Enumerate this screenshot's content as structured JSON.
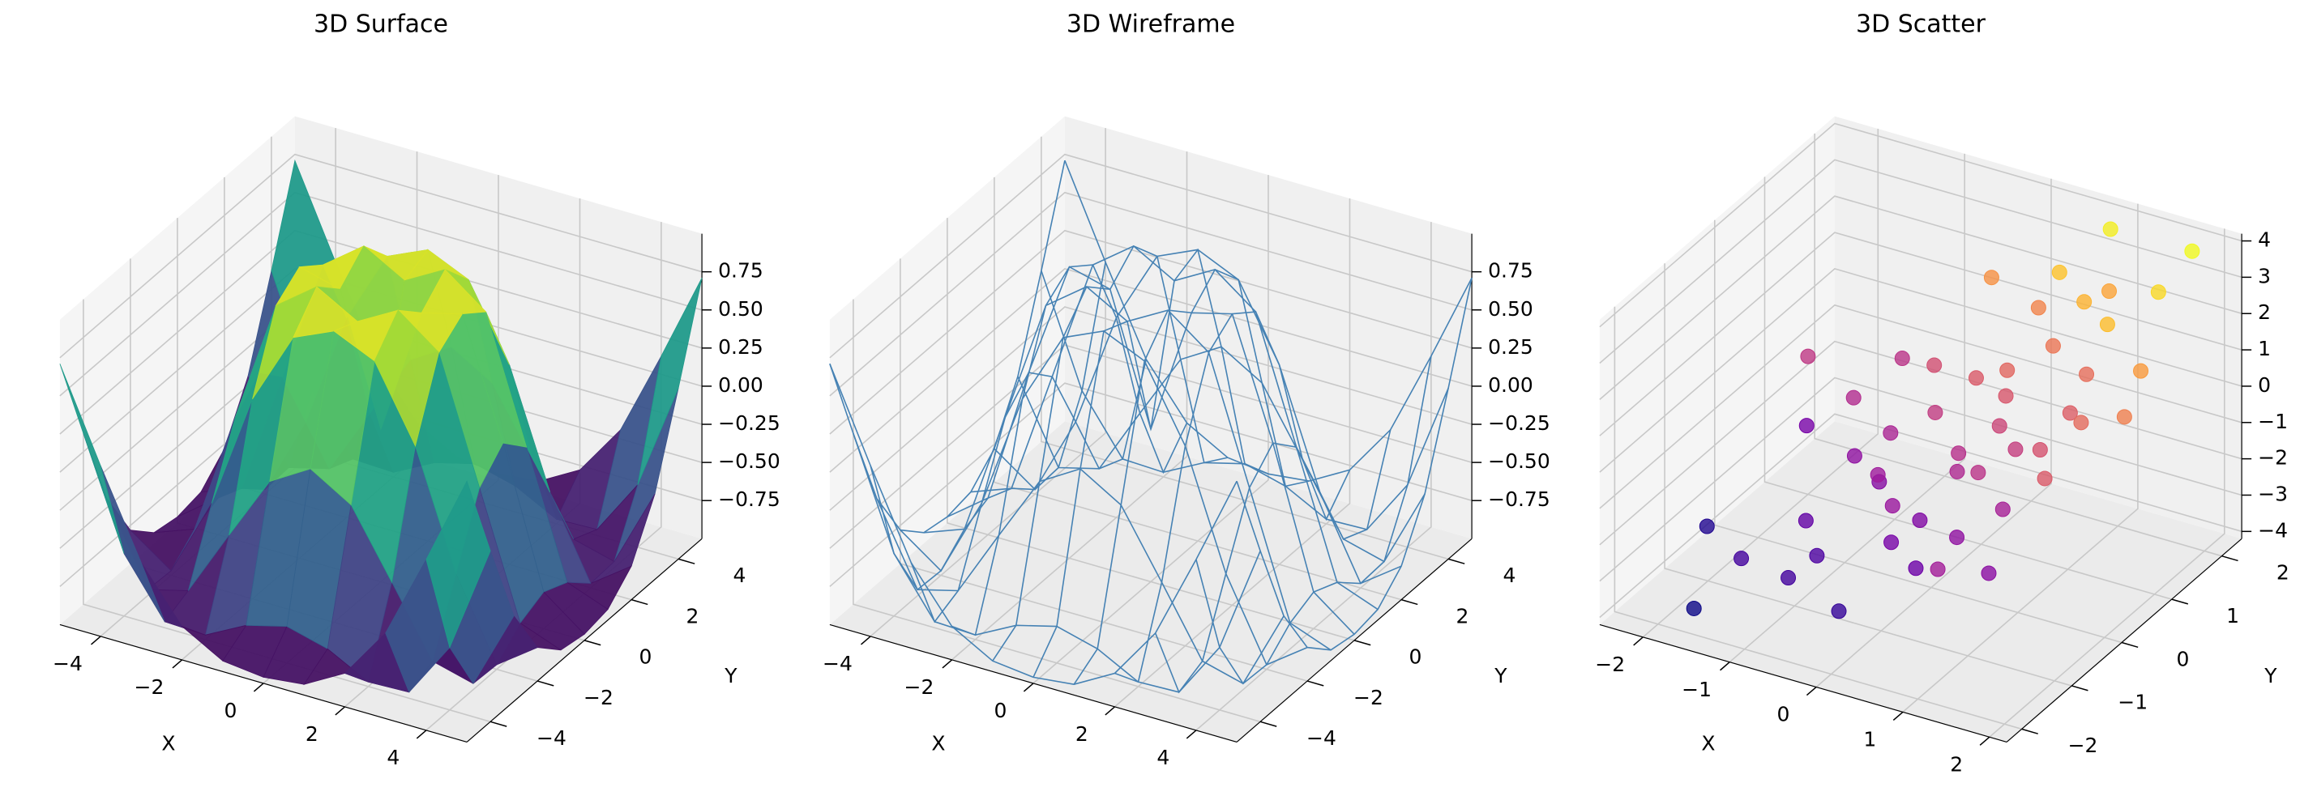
{
  "chart_data": [
    {
      "type": "surface",
      "title": "3D Surface",
      "xlabel": "X",
      "ylabel": "Y",
      "colormap": "viridis",
      "x": [
        -5,
        -4,
        -3,
        -2,
        -1,
        0,
        1,
        2,
        3,
        4,
        5
      ],
      "y": [
        -5,
        -4,
        -3,
        -2,
        -1,
        0,
        1,
        2,
        3,
        4,
        5
      ],
      "z": [
        [
          0.71,
          0.12,
          -0.44,
          -0.78,
          -0.93,
          -0.96,
          -0.93,
          -0.78,
          -0.44,
          0.12,
          0.71
        ],
        [
          0.12,
          -0.59,
          -0.96,
          -0.97,
          -0.83,
          -0.76,
          -0.83,
          -0.97,
          -0.96,
          -0.59,
          0.12
        ],
        [
          -0.44,
          -0.96,
          -0.89,
          -0.45,
          -0.02,
          0.14,
          -0.02,
          -0.45,
          -0.89,
          -0.96,
          -0.44
        ],
        [
          -0.78,
          -0.97,
          -0.45,
          0.31,
          0.79,
          0.91,
          0.79,
          0.31,
          -0.45,
          -0.97,
          -0.78
        ],
        [
          -0.93,
          -0.83,
          -0.02,
          0.79,
          0.99,
          0.84,
          0.99,
          0.79,
          -0.02,
          -0.83,
          -0.93
        ],
        [
          -0.96,
          -0.76,
          0.14,
          0.91,
          0.84,
          0,
          0.84,
          0.91,
          0.14,
          -0.76,
          -0.96
        ],
        [
          -0.93,
          -0.83,
          -0.02,
          0.79,
          0.99,
          0.84,
          0.99,
          0.79,
          -0.02,
          -0.83,
          -0.93
        ],
        [
          -0.78,
          -0.97,
          -0.45,
          0.31,
          0.79,
          0.91,
          0.79,
          0.31,
          -0.45,
          -0.97,
          -0.78
        ],
        [
          -0.44,
          -0.96,
          -0.89,
          -0.45,
          -0.02,
          0.14,
          -0.02,
          -0.45,
          -0.89,
          -0.96,
          -0.44
        ],
        [
          0.12,
          -0.59,
          -0.96,
          -0.97,
          -0.83,
          -0.76,
          -0.83,
          -0.97,
          -0.96,
          -0.59,
          0.12
        ],
        [
          0.71,
          0.12,
          -0.44,
          -0.78,
          -0.93,
          -0.96,
          -0.93,
          -0.78,
          -0.44,
          0.12,
          0.71
        ]
      ],
      "xlim": [
        -5,
        5
      ],
      "ylim": [
        -5,
        5
      ],
      "zlim": [
        -1,
        1
      ],
      "xticks": [
        {
          "value": -4,
          "label": "−4"
        },
        {
          "value": -2,
          "label": "−2"
        },
        0,
        2,
        4
      ],
      "yticks": [
        {
          "value": -4,
          "label": "−4"
        },
        {
          "value": -2,
          "label": "−2"
        },
        0,
        2,
        4
      ],
      "zticks": [
        {
          "value": -0.75,
          "label": "−0.75"
        },
        {
          "value": -0.5,
          "label": "−0.50"
        },
        {
          "value": -0.25,
          "label": "−0.25"
        },
        {
          "value": 0,
          "label": "0.00"
        },
        0.25,
        {
          "value": 0.5,
          "label": "0.50"
        },
        0.75
      ]
    },
    {
      "type": "wireframe",
      "title": "3D Wireframe",
      "xlabel": "X",
      "ylabel": "Y",
      "color": "#4682b4",
      "x": [
        -5,
        -4,
        -3,
        -2,
        -1,
        0,
        1,
        2,
        3,
        4,
        5
      ],
      "y": [
        -5,
        -4,
        -3,
        -2,
        -1,
        0,
        1,
        2,
        3,
        4,
        5
      ],
      "z": [
        [
          0.71,
          0.12,
          -0.44,
          -0.78,
          -0.93,
          -0.96,
          -0.93,
          -0.78,
          -0.44,
          0.12,
          0.71
        ],
        [
          0.12,
          -0.59,
          -0.96,
          -0.97,
          -0.83,
          -0.76,
          -0.83,
          -0.97,
          -0.96,
          -0.59,
          0.12
        ],
        [
          -0.44,
          -0.96,
          -0.89,
          -0.45,
          -0.02,
          0.14,
          -0.02,
          -0.45,
          -0.89,
          -0.96,
          -0.44
        ],
        [
          -0.78,
          -0.97,
          -0.45,
          0.31,
          0.79,
          0.91,
          0.79,
          0.31,
          -0.45,
          -0.97,
          -0.78
        ],
        [
          -0.93,
          -0.83,
          -0.02,
          0.79,
          0.99,
          0.84,
          0.99,
          0.79,
          -0.02,
          -0.83,
          -0.93
        ],
        [
          -0.96,
          -0.76,
          0.14,
          0.91,
          0.84,
          0,
          0.84,
          0.91,
          0.14,
          -0.76,
          -0.96
        ],
        [
          -0.93,
          -0.83,
          -0.02,
          0.79,
          0.99,
          0.84,
          0.99,
          0.79,
          -0.02,
          -0.83,
          -0.93
        ],
        [
          -0.78,
          -0.97,
          -0.45,
          0.31,
          0.79,
          0.91,
          0.79,
          0.31,
          -0.45,
          -0.97,
          -0.78
        ],
        [
          -0.44,
          -0.96,
          -0.89,
          -0.45,
          -0.02,
          0.14,
          -0.02,
          -0.45,
          -0.89,
          -0.96,
          -0.44
        ],
        [
          0.12,
          -0.59,
          -0.96,
          -0.97,
          -0.83,
          -0.76,
          -0.83,
          -0.97,
          -0.96,
          -0.59,
          0.12
        ],
        [
          0.71,
          0.12,
          -0.44,
          -0.78,
          -0.93,
          -0.96,
          -0.93,
          -0.78,
          -0.44,
          0.12,
          0.71
        ]
      ],
      "xlim": [
        -5,
        5
      ],
      "ylim": [
        -5,
        5
      ],
      "zlim": [
        -1,
        1
      ],
      "xticks": [
        {
          "value": -4,
          "label": "−4"
        },
        {
          "value": -2,
          "label": "−2"
        },
        0,
        2,
        4
      ],
      "yticks": [
        {
          "value": -4,
          "label": "−4"
        },
        {
          "value": -2,
          "label": "−2"
        },
        0,
        2,
        4
      ],
      "zticks": [
        {
          "value": -0.75,
          "label": "−0.75"
        },
        {
          "value": -0.5,
          "label": "−0.50"
        },
        {
          "value": -0.25,
          "label": "−0.25"
        },
        {
          "value": 0,
          "label": "0.00"
        },
        0.25,
        {
          "value": 0.5,
          "label": "0.50"
        },
        0.75
      ]
    },
    {
      "type": "scatter",
      "title": "3D Scatter",
      "xlabel": "X",
      "ylabel": "Y",
      "colormap": "plasma",
      "x": [
        -2.3,
        -1.9,
        -1.5,
        -1.2,
        -1.0,
        -0.8,
        -0.6,
        -0.5,
        -0.3,
        -0.2,
        0.0,
        0.1,
        0.2,
        0.3,
        0.4,
        0.5,
        0.6,
        0.7,
        0.8,
        0.9,
        1.0,
        1.1,
        1.2,
        1.3,
        1.5,
        1.7,
        1.9,
        -1.7,
        -1.1,
        -0.7,
        -0.4,
        0.0,
        0.3,
        0.6,
        0.9,
        1.2,
        1.6,
        -2.0,
        -0.9,
        0.2,
        0.8,
        1.4,
        -1.3,
        -0.1,
        0.5,
        1.0,
        -0.6,
        0.4,
        1.8,
        2.0
      ],
      "y": [
        -0.5,
        0.8,
        -1.2,
        1.5,
        0.2,
        -0.9,
        1.1,
        -0.2,
        0.6,
        -1.5,
        0.9,
        -0.4,
        1.8,
        0.0,
        -1.0,
        0.5,
        1.4,
        -0.7,
        0.3,
        2.0,
        -0.3,
        1.2,
        0.7,
        -1.1,
        0.4,
        1.6,
        0.9,
        -1.8,
        -0.6,
        0.4,
        1.9,
        -0.8,
        1.0,
        -0.1,
        1.5,
        0.1,
        -0.5,
        1.0,
        -1.3,
        0.2,
        2.2,
        1.1,
        0.7,
        -0.6,
        1.7,
        -1.6,
        0.0,
        0.8,
        2.1,
        0.4
      ],
      "z": [
        -3.5,
        -2.0,
        -3.0,
        -0.5,
        -1.5,
        -2.8,
        0.2,
        -1.2,
        -0.3,
        -3.2,
        0.5,
        -1.8,
        1.5,
        -0.8,
        -2.2,
        0.0,
        1.2,
        -1.5,
        -0.2,
        2.2,
        -1.0,
        1.0,
        0.6,
        -1.6,
        0.9,
        3.2,
        2.0,
        -3.8,
        -2.4,
        -0.9,
        1.8,
        -2.0,
        0.8,
        -0.5,
        2.5,
        0.3,
        0.5,
        -0.4,
        -3.0,
        -0.6,
        3.6,
        2.7,
        -0.7,
        -1.3,
        2.8,
        -1.1,
        -1.7,
        0.4,
        3.8,
        1.4
      ],
      "xlim": [
        -2.5,
        2.2
      ],
      "ylim": [
        -2.3,
        2.4
      ],
      "zlim": [
        -4.2,
        4.2
      ],
      "xticks": [
        {
          "value": -2,
          "label": "−2"
        },
        {
          "value": -1,
          "label": "−1"
        },
        0,
        1,
        2
      ],
      "yticks": [
        {
          "value": -2,
          "label": "−2"
        },
        {
          "value": -1,
          "label": "−1"
        },
        0,
        1,
        2
      ],
      "zticks": [
        {
          "value": -4,
          "label": "−4"
        },
        {
          "value": -3,
          "label": "−3"
        },
        {
          "value": -2,
          "label": "−2"
        },
        {
          "value": -1,
          "label": "−1"
        },
        0,
        1,
        2,
        3,
        4
      ]
    }
  ]
}
